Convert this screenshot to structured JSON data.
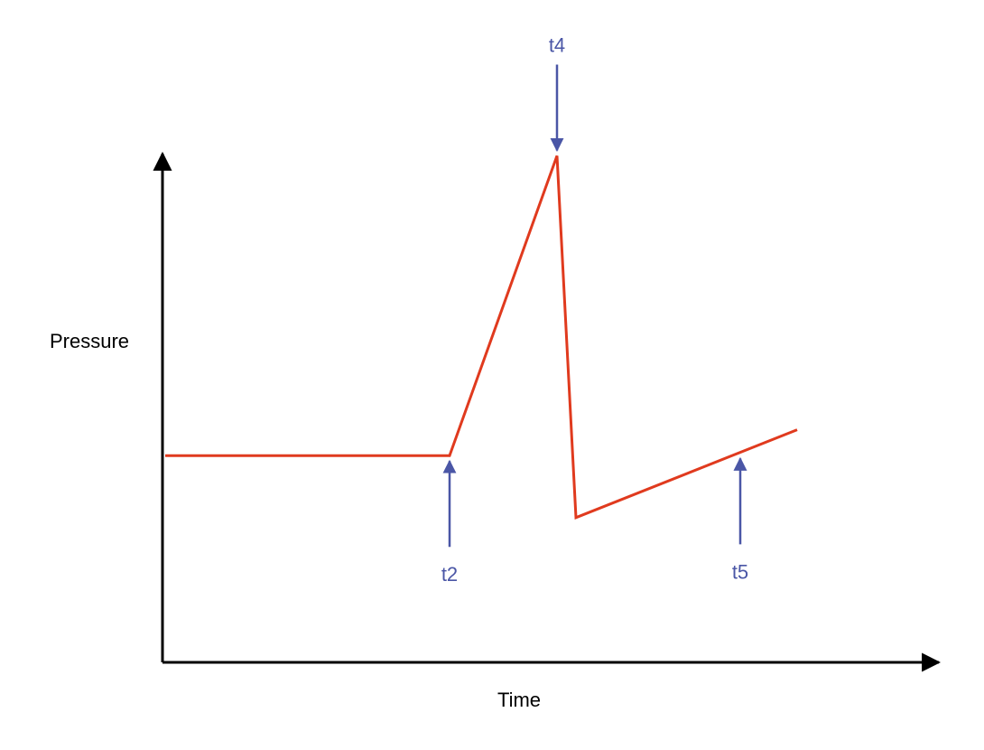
{
  "chart_data": {
    "type": "line",
    "title": "",
    "xlabel": "Time",
    "ylabel": "Pressure",
    "xlim": [
      0,
      100
    ],
    "ylim": [
      0,
      100
    ],
    "grid": false,
    "legend": "none",
    "series": [
      {
        "x": [
          0,
          45,
          62,
          65,
          100
        ],
        "y": [
          40,
          40,
          98,
          28,
          45
        ]
      }
    ],
    "markers": [
      {
        "label": "t2",
        "x": 45,
        "y": 40,
        "direction": "up"
      },
      {
        "label": "t4",
        "x": 62,
        "y": 98,
        "direction": "down"
      },
      {
        "label": "t5",
        "x": 91,
        "y": 40.5,
        "direction": "up"
      }
    ],
    "colors": {
      "series": "#e03a1e",
      "markers": "#4a56a6",
      "axes": "#000000"
    }
  }
}
